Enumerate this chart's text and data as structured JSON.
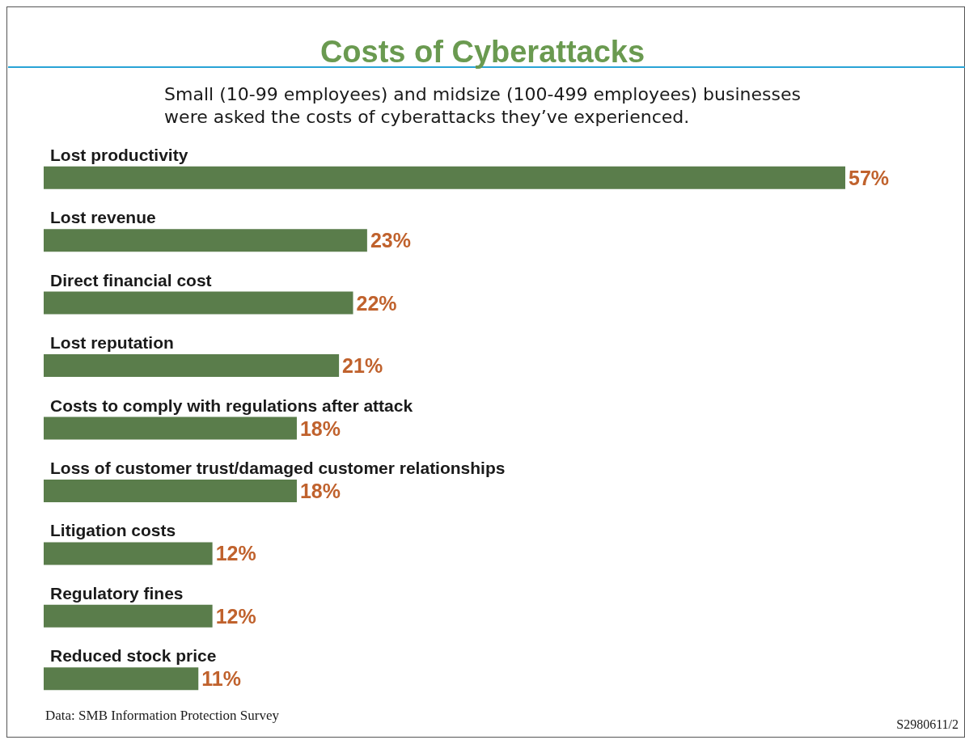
{
  "chart_data": {
    "type": "bar",
    "orientation": "horizontal",
    "title": "Costs of Cyberattacks",
    "subtitle": "Small (10-99 employees) and midsize (100-499 employees) businesses\nwere asked the costs of cyberattacks they’ve experienced.",
    "categories": [
      "Lost productivity",
      "Lost revenue",
      "Direct financial cost",
      "Lost reputation",
      "Costs to comply with regulations after attack",
      "Loss of customer trust/damaged customer relationships",
      "Litigation costs",
      "Regulatory fines",
      "Reduced stock price"
    ],
    "values": [
      57,
      23,
      22,
      21,
      18,
      18,
      12,
      12,
      11
    ],
    "value_labels": [
      "57%",
      "23%",
      "22%",
      "21%",
      "18%",
      "18%",
      "12%",
      "12%",
      "11%"
    ],
    "color": "#5a7d4b",
    "annotations": [
      "Data: SMB Information Protection Survey",
      "S2980611/2"
    ]
  }
}
